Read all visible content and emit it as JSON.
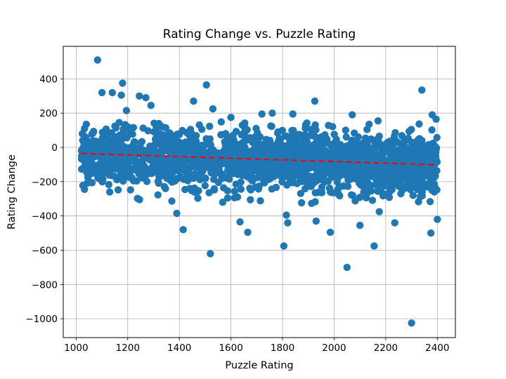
{
  "chart_data": {
    "type": "scatter",
    "title": "Rating Change vs. Puzzle Rating",
    "xlabel": "Puzzle Rating",
    "ylabel": "Rating Change",
    "xlim": [
      950,
      2470
    ],
    "ylim": [
      -1110,
      590
    ],
    "xticks": [
      1000,
      1200,
      1400,
      1600,
      1800,
      2000,
      2200,
      2400
    ],
    "yticks": [
      400,
      200,
      0,
      -200,
      -400,
      -600,
      -800,
      -1000
    ],
    "xtick_labels": [
      "1000",
      "1200",
      "1400",
      "1600",
      "1800",
      "2000",
      "2200",
      "2400"
    ],
    "ytick_labels": [
      "400",
      "200",
      "0",
      "−200",
      "−400",
      "−600",
      "−800",
      "−1000"
    ],
    "grid": true,
    "colors": {
      "points": "#1f77b4",
      "trend": "#ff0000",
      "grid": "#b0b0b0"
    },
    "series": [
      {
        "kind": "points",
        "x": [
          1083,
          1505,
          2340,
          1925,
          1180,
          1245,
          1270,
          1140,
          1100,
          1175,
          1195,
          1290,
          1455,
          1530,
          1600,
          1720,
          1760,
          1840,
          2070,
          2170,
          2380,
          2395,
          1520,
          1635,
          1665,
          1805,
          1815,
          1820,
          1930,
          1985,
          2050,
          2100,
          2155,
          2175,
          2235,
          2375,
          2400,
          1415,
          1390,
          1130,
          1080,
          1050,
          1045,
          2300
        ],
        "y": [
          510,
          365,
          335,
          270,
          375,
          300,
          290,
          320,
          320,
          305,
          215,
          245,
          270,
          225,
          175,
          195,
          200,
          195,
          190,
          155,
          190,
          165,
          -620,
          -435,
          -495,
          -575,
          -395,
          -440,
          -430,
          -495,
          -700,
          -455,
          -575,
          -375,
          -440,
          -500,
          -420,
          -480,
          -385,
          -260,
          -140,
          -150,
          -155,
          -1025
        ],
        "dense_region_summary": "Approximately 2000 additional points densely distributed between x 1020-2400, mostly within y -300 to 150"
      },
      {
        "kind": "trend",
        "name": "",
        "x": [
          1020,
          2400
        ],
        "y": [
          -35,
          -102
        ]
      }
    ]
  }
}
